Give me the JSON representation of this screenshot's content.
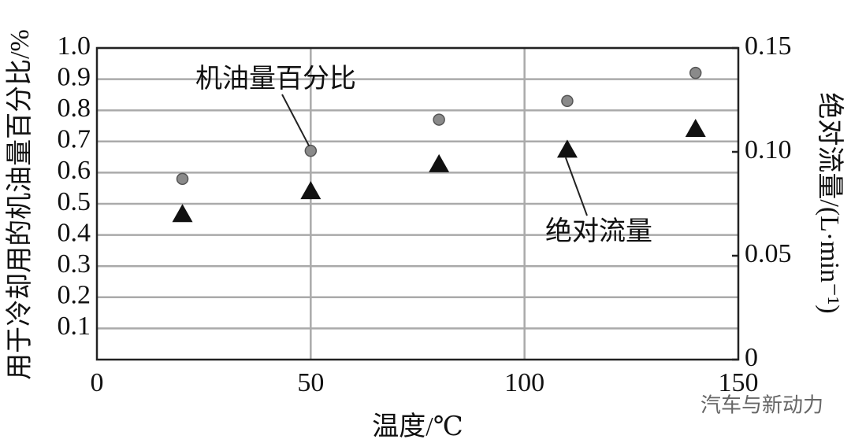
{
  "chart_data": {
    "type": "scatter",
    "x": [
      20,
      50,
      80,
      110,
      140
    ],
    "xlabel": "温度/℃",
    "ylabel": "用于冷却用的机油量百分比/%",
    "y2label": "绝对流量/(L·min⁻¹)",
    "xlim": [
      0,
      150
    ],
    "xticks": [
      0,
      50,
      100,
      150
    ],
    "ylim": [
      0,
      1.0
    ],
    "yticks": [
      0.1,
      0.2,
      0.3,
      0.4,
      0.5,
      0.6,
      0.7,
      0.8,
      0.9,
      {
        "value": 1.0,
        "label": "1.0"
      }
    ],
    "y2lim": [
      0,
      0.15
    ],
    "y2ticks": [
      0,
      0.05,
      {
        "value": 0.1,
        "label": "0.10"
      },
      0.15
    ],
    "grid": true,
    "series": [
      {
        "name": "机油量百分比",
        "color": "#8a8a8a",
        "marker": "circle",
        "values": [
          0.58,
          0.67,
          0.77,
          0.83,
          0.92
        ]
      },
      {
        "name": "绝对流量",
        "color": "#111111",
        "marker": "triangle",
        "axis": "y2",
        "values": [
          0.07,
          0.081,
          0.094,
          0.101,
          0.111
        ]
      }
    ],
    "watermark": "汽车与新动力"
  }
}
